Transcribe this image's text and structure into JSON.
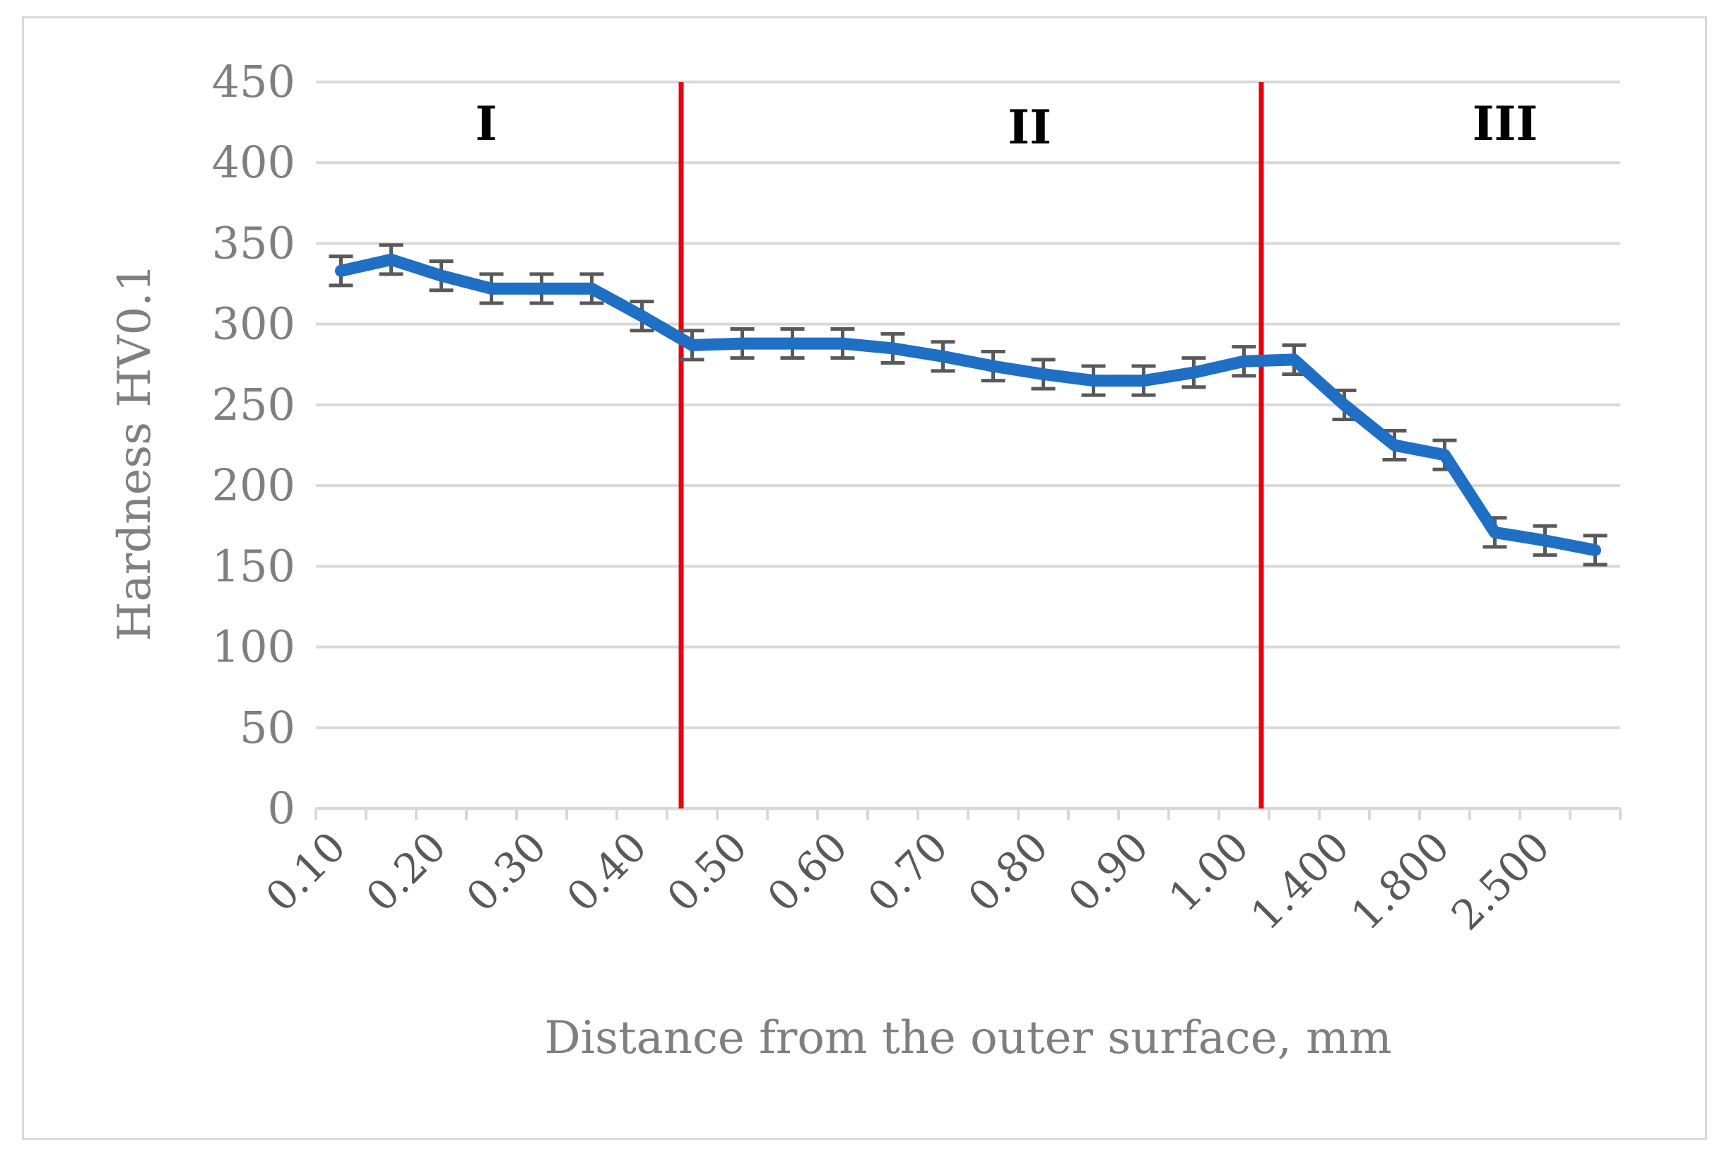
{
  "chart_data": {
    "type": "line",
    "xlabel": "Distance from the outer surface, mm",
    "ylabel": "Hardness HV0.1",
    "ylim": [
      0,
      450
    ],
    "yticks": [
      0,
      50,
      100,
      150,
      200,
      250,
      300,
      350,
      400,
      450
    ],
    "grid": true,
    "legend": "none",
    "x_tick_labels": [
      "0.10",
      "0.20",
      "0.30",
      "0.40",
      "0.50",
      "0.60",
      "0.70",
      "0.80",
      "0.90",
      "1.00",
      "1.400",
      "1.800",
      "2.500"
    ],
    "series": [
      {
        "color": "#1f6fc5",
        "values": [
          333,
          340,
          330,
          322,
          322,
          322,
          305,
          287,
          288,
          288,
          288,
          285,
          280,
          274,
          269,
          265,
          265,
          270,
          277,
          278,
          250,
          225,
          219,
          171,
          166,
          160
        ],
        "error": 9
      }
    ],
    "region_labels": [
      "I",
      "II",
      "III"
    ],
    "boundary_color": "#e8000b"
  }
}
